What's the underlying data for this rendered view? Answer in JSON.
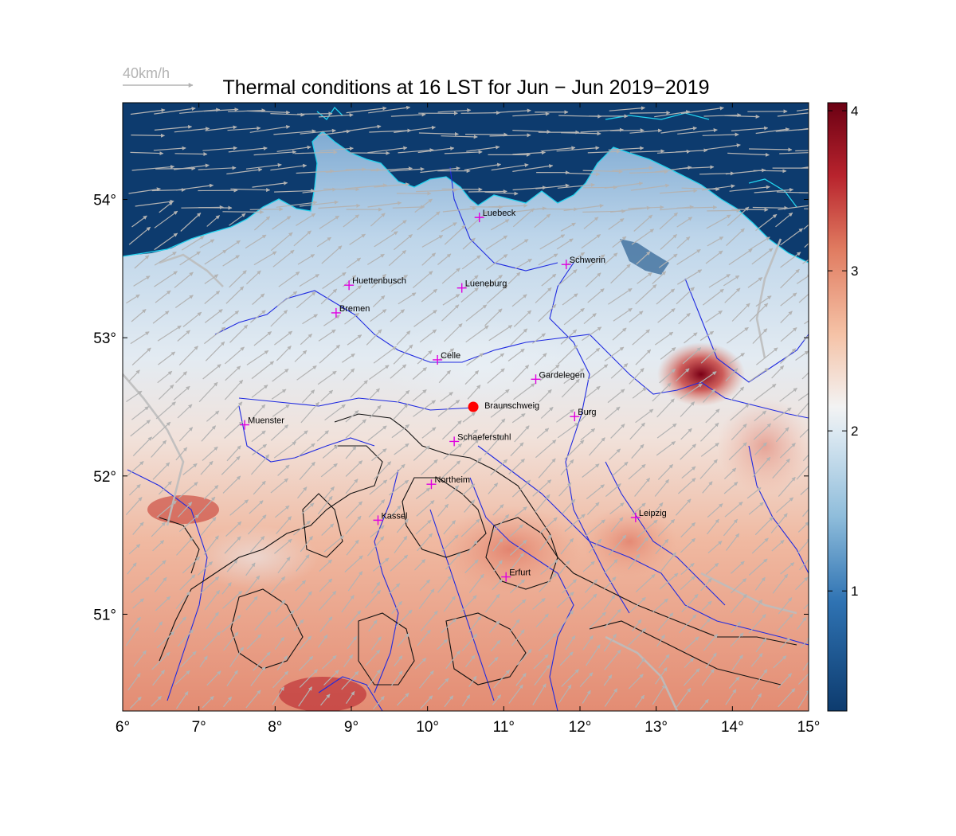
{
  "title": "Thermal conditions at 16 LST for Jun − Jun  2019−2019",
  "wind_reference": {
    "label": "40km/h"
  },
  "axes": {
    "x_ticks": [
      "6°",
      "7°",
      "8°",
      "9°",
      "10°",
      "11°",
      "12°",
      "13°",
      "14°",
      "15°"
    ],
    "y_ticks": [
      "51°",
      "52°",
      "53°",
      "54°"
    ],
    "lon_range": [
      6,
      15
    ],
    "lat_range": [
      50.3,
      54.7
    ]
  },
  "colorbar": {
    "ticks": [
      "1",
      "2",
      "3",
      "4"
    ],
    "range": [
      0.25,
      4.05
    ],
    "colors": {
      "low": "#0d3b6e",
      "mid": "#f3f3f3",
      "high": "#6b0013"
    }
  },
  "cities": [
    {
      "name": "Luebeck",
      "lon": 10.68,
      "lat": 53.87
    },
    {
      "name": "Schwerin",
      "lon": 11.82,
      "lat": 53.53
    },
    {
      "name": "Huettenbusch",
      "lon": 8.97,
      "lat": 53.38
    },
    {
      "name": "Lueneburg",
      "lon": 10.45,
      "lat": 53.36
    },
    {
      "name": "Bremen",
      "lon": 8.8,
      "lat": 53.18
    },
    {
      "name": "Celle",
      "lon": 10.13,
      "lat": 52.84
    },
    {
      "name": "Gardelegen",
      "lon": 11.42,
      "lat": 52.7
    },
    {
      "name": "Braunschweig",
      "lon": 10.6,
      "lat": 52.5,
      "marker": "station"
    },
    {
      "name": "Burg",
      "lon": 11.93,
      "lat": 52.43
    },
    {
      "name": "Muenster",
      "lon": 7.6,
      "lat": 52.37
    },
    {
      "name": "Schaeferstuhl",
      "lon": 10.35,
      "lat": 52.25
    },
    {
      "name": "Northeim",
      "lon": 10.05,
      "lat": 51.94
    },
    {
      "name": "Leipzig",
      "lon": 12.73,
      "lat": 51.7
    },
    {
      "name": "Kassel",
      "lon": 9.35,
      "lat": 51.68
    },
    {
      "name": "Erfurt",
      "lon": 11.03,
      "lat": 51.27
    }
  ]
}
